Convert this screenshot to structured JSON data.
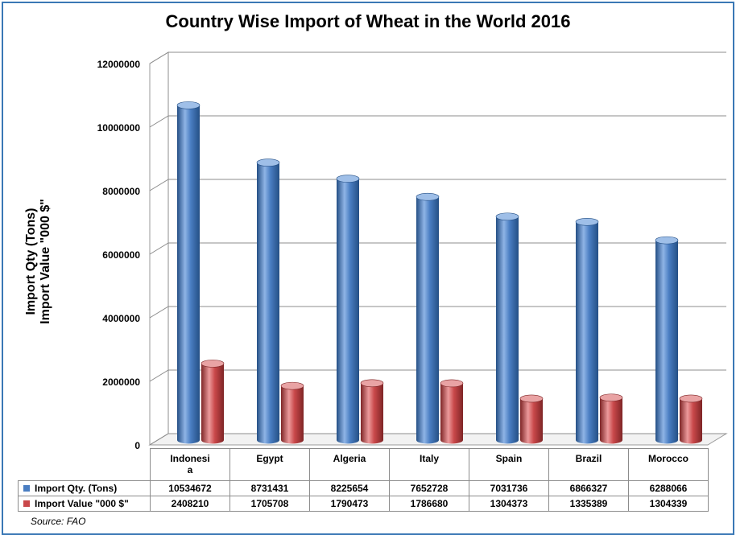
{
  "chart_data": {
    "type": "bar",
    "title": "Country Wise Import of Wheat in the World 2016",
    "ylabel": [
      "Import Qty (Tons)",
      "Import Value \"000 $\""
    ],
    "categories": [
      "Indonesia",
      "Egypt",
      "Algeria",
      "Italy",
      "Spain",
      "Brazil",
      "Morocco"
    ],
    "category_display": [
      "Indonesi\na",
      "Egypt",
      "Algeria",
      "Italy",
      "Spain",
      "Brazil",
      "Morocco"
    ],
    "series": [
      {
        "name": "Import Qty. (Tons)",
        "color": "#4a7ec2",
        "values": [
          10534672,
          8731431,
          8225654,
          7652728,
          7031736,
          6866327,
          6288066
        ]
      },
      {
        "name": "Import Value \"000 $\"",
        "color": "#c9484a",
        "values": [
          2408210,
          1705708,
          1790473,
          1786680,
          1304373,
          1335389,
          1304339
        ]
      }
    ],
    "ylim": [
      0,
      12000000
    ],
    "yticks": [
      0,
      2000000,
      4000000,
      6000000,
      8000000,
      10000000,
      12000000
    ],
    "ytick_labels": [
      "0",
      "2000000",
      "4000000",
      "6000000",
      "8000000",
      "10000000",
      "12000000"
    ],
    "grid": true,
    "legend": "data-table",
    "style": "3d-cylinder"
  },
  "source": "Source: FAO"
}
